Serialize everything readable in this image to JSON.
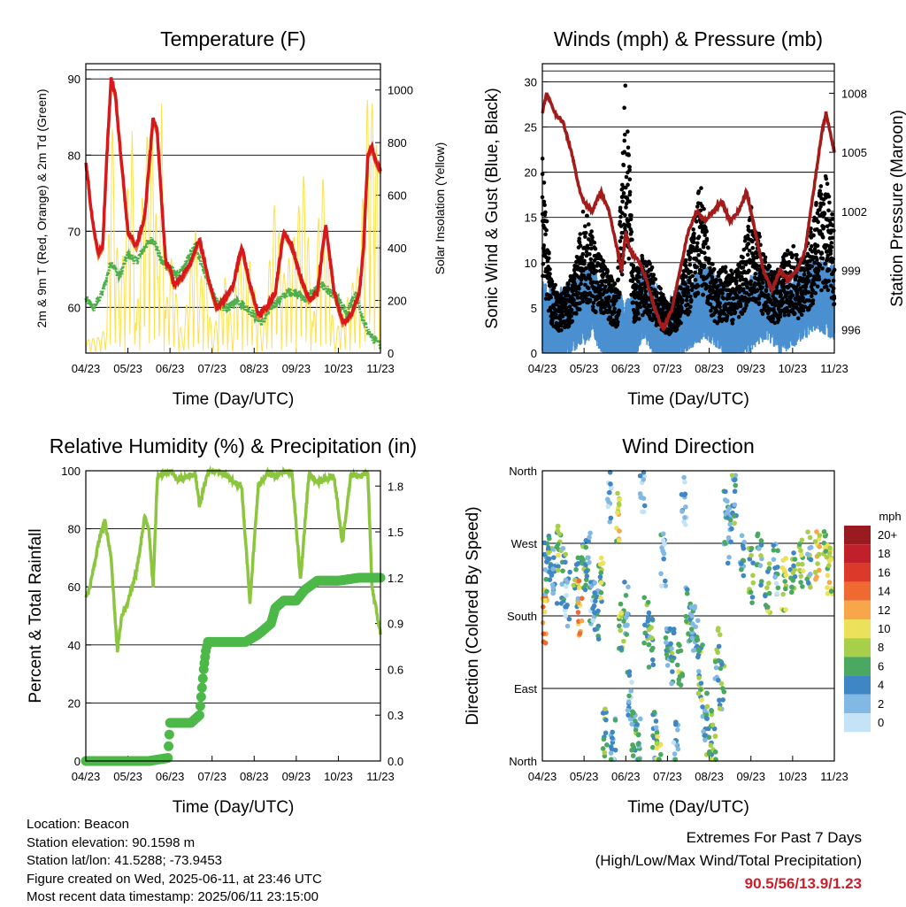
{
  "colors": {
    "temp_red": "#d7191c",
    "temp_orange": "#f07f2b",
    "dewpoint_green": "#4daf4a",
    "solar_yellow": "#ffe14d",
    "wind_blue": "#4a90d0",
    "gust_black": "#000000",
    "pressure_maroon": "#a31c1c",
    "rh_green": "#8cc63f",
    "rain_green": "#4cb848",
    "extremes_red": "#c8202c"
  },
  "x_ticks": [
    "04/23",
    "05/23",
    "06/23",
    "07/23",
    "08/23",
    "09/23",
    "10/23",
    "11/23"
  ],
  "panels": {
    "temperature": {
      "title": "Temperature (F)",
      "xlabel": "Time (Day/UTC)",
      "ylabel_left": "2m & 9m T (Red, Orange) & 2m Td (Green)",
      "ylabel_right": "Solar Insolation (Yellow)",
      "yticks_left": [
        "60",
        "70",
        "80",
        "90"
      ],
      "yticks_right": [
        "0",
        "200",
        "400",
        "600",
        "800",
        "1000"
      ]
    },
    "winds": {
      "title": "Winds (mph) & Pressure (mb)",
      "xlabel": "Time (Day/UTC)",
      "ylabel_left": "Sonic Wind & Gust (Blue, Black)",
      "ylabel_right": "Station Pressure (Maroon)",
      "yticks_left": [
        "0",
        "5",
        "10",
        "15",
        "20",
        "25",
        "30"
      ],
      "yticks_right": [
        "996",
        "999",
        "1002",
        "1005",
        "1008"
      ]
    },
    "humidity": {
      "title": "Relative Humidity (%) & Precipitation (in)",
      "xlabel": "Time (Day/UTC)",
      "ylabel_left": "Percent & Total Rainfall",
      "yticks_left": [
        "0",
        "20",
        "40",
        "60",
        "80",
        "100"
      ],
      "yticks_right": [
        "0.0",
        "0.3",
        "0.6",
        "0.9",
        "1.2",
        "1.5",
        "1.8"
      ]
    },
    "direction": {
      "title": "Wind Direction",
      "xlabel": "Time (Day/UTC)",
      "ylabel_left": "Direction (Colored By Speed)",
      "yticks_left": [
        "North",
        "East",
        "South",
        "West",
        "North"
      ],
      "legend_title": "mph",
      "legend_labels": [
        "20+",
        "18",
        "16",
        "14",
        "12",
        "10",
        "8",
        "6",
        "4",
        "2",
        "0"
      ],
      "legend_colors": [
        "#991a1f",
        "#c0202a",
        "#db3a2a",
        "#ef6a30",
        "#f7a64a",
        "#ece15a",
        "#a8cf4a",
        "#4aa860",
        "#3f86c4",
        "#82b9e4",
        "#c4e3f7"
      ]
    }
  },
  "info": {
    "location": "Location: Beacon",
    "elevation": "Station elevation: 90.1598 m",
    "latlon": "Station lat/lon: 41.5288; -73.9453",
    "created": "Figure created on Wed, 2025-06-11, at 23:46 UTC",
    "recent": "Most recent data timestamp: 2025/06/11 23:15:00"
  },
  "extremes": {
    "line1": "Extremes For Past 7 Days",
    "line2": "(High/Low/Max Wind/Total Precipitation)",
    "values": "90.5/56/13.9/1.23"
  },
  "chart_data": [
    {
      "type": "line",
      "title": "Temperature (F)",
      "xlabel": "Time (Day/UTC)",
      "ylabel": "2m & 9m T (Red, Orange) & 2m Td (Green)",
      "y2label": "Solar Insolation (Yellow)",
      "x_ticks": [
        "04/23",
        "05/23",
        "06/23",
        "07/23",
        "08/23",
        "09/23",
        "10/23",
        "11/23"
      ],
      "x_range": [
        0,
        7
      ],
      "ylim": [
        54,
        92
      ],
      "y2lim": [
        0,
        1100
      ],
      "series": [
        {
          "name": "2m & 9m T",
          "axis": "left",
          "color": "#d7191c",
          "x": [
            0,
            0.05,
            0.1,
            0.2,
            0.3,
            0.4,
            0.5,
            0.6,
            0.7,
            0.8,
            0.9,
            1.0,
            1.2,
            1.4,
            1.6,
            1.7,
            1.8,
            1.9,
            2.0,
            2.1,
            2.3,
            2.5,
            2.7,
            2.9,
            3.1,
            3.3,
            3.5,
            3.7,
            3.9,
            4.1,
            4.3,
            4.5,
            4.7,
            4.9,
            5.1,
            5.3,
            5.5,
            5.7,
            5.9,
            6.1,
            6.3,
            6.5,
            6.6,
            6.7,
            6.8,
            6.9,
            7.0
          ],
          "y": [
            79,
            77,
            74,
            70,
            67,
            68,
            80,
            90,
            88,
            82,
            76,
            70,
            68,
            72,
            85,
            83,
            74,
            66,
            65,
            63,
            64,
            66,
            69,
            64,
            60,
            61,
            63,
            68,
            63,
            59,
            60,
            62,
            70,
            68,
            64,
            61,
            62,
            71,
            62,
            58,
            59,
            62,
            68,
            80,
            81,
            79,
            78
          ]
        },
        {
          "name": "2m Td",
          "axis": "left",
          "color": "#4daf4a",
          "x": [
            0,
            0.2,
            0.4,
            0.6,
            0.8,
            1.0,
            1.2,
            1.4,
            1.6,
            1.8,
            2.0,
            2.2,
            2.4,
            2.6,
            2.8,
            3.0,
            3.2,
            3.4,
            3.6,
            3.8,
            4.0,
            4.2,
            4.4,
            4.6,
            4.8,
            5.0,
            5.2,
            5.4,
            5.6,
            5.8,
            6.0,
            6.2,
            6.4,
            6.6,
            6.8,
            7.0
          ],
          "y": [
            61,
            60,
            62,
            66,
            64,
            67,
            66,
            68,
            69,
            66,
            65,
            64,
            66,
            68,
            65,
            62,
            60,
            60,
            61,
            60,
            59,
            58,
            60,
            61,
            62,
            62,
            61,
            62,
            63,
            62,
            61,
            59,
            62,
            58,
            56,
            55
          ]
        },
        {
          "name": "Solar Insolation",
          "axis": "right",
          "color": "#ffe14d",
          "x": [
            0,
            0.3,
            0.5,
            0.55,
            0.6,
            0.8,
            1.0,
            1.1,
            1.2,
            1.4,
            1.6,
            1.62,
            1.7,
            1.8,
            1.9,
            2.0,
            2.3,
            2.6,
            2.7,
            2.8,
            3.0,
            3.3,
            3.5,
            3.6,
            3.9,
            4.2,
            4.5,
            4.7,
            4.9,
            5.2,
            5.4,
            5.6,
            5.9,
            6.2,
            6.5,
            6.7,
            6.9,
            7.0
          ],
          "y": [
            50,
            60,
            100,
            600,
            1000,
            200,
            650,
            850,
            100,
            800,
            900,
            1060,
            300,
            950,
            150,
            400,
            50,
            500,
            200,
            450,
            50,
            300,
            80,
            400,
            350,
            60,
            600,
            300,
            400,
            700,
            100,
            750,
            60,
            200,
            350,
            1000,
            900,
            50
          ]
        }
      ]
    },
    {
      "type": "line",
      "title": "Winds (mph) & Pressure (mb)",
      "xlabel": "Time (Day/UTC)",
      "ylabel": "Sonic Wind & Gust (Blue, Black)",
      "y2label": "Station Pressure (Maroon)",
      "x_ticks": [
        "04/23",
        "05/23",
        "06/23",
        "07/23",
        "08/23",
        "09/23",
        "10/23",
        "11/23"
      ],
      "x_range": [
        0,
        7
      ],
      "ylim": [
        0,
        32
      ],
      "y2lim": [
        994.8,
        1009.5
      ],
      "series": [
        {
          "name": "Sonic Wind",
          "axis": "left",
          "color": "#4a90d0",
          "x": [
            0,
            0.3,
            0.6,
            0.9,
            1.2,
            1.5,
            1.8,
            2.1,
            2.4,
            2.7,
            3.0,
            3.3,
            3.6,
            3.9,
            4.2,
            4.5,
            4.8,
            5.1,
            5.4,
            5.7,
            6.0,
            6.3,
            6.6,
            6.9,
            7.0
          ],
          "y": [
            4,
            3,
            4,
            5,
            6,
            4,
            3,
            2,
            6,
            4,
            2,
            4,
            5,
            6,
            5,
            3,
            4,
            5,
            6,
            4,
            5,
            6,
            7,
            6,
            6
          ]
        },
        {
          "name": "Gust",
          "axis": "left",
          "color": "#000000",
          "x": [
            0,
            0.2,
            0.4,
            0.6,
            0.8,
            1.0,
            1.2,
            1.4,
            1.6,
            1.8,
            2.0,
            2.2,
            2.4,
            2.6,
            2.8,
            3.0,
            3.2,
            3.4,
            3.6,
            3.8,
            4.0,
            4.2,
            4.4,
            4.6,
            4.8,
            5.0,
            5.2,
            5.4,
            5.6,
            5.8,
            6.0,
            6.2,
            6.4,
            6.6,
            6.8,
            7.0
          ],
          "y": [
            20,
            8,
            6,
            7,
            9,
            15,
            12,
            10,
            8,
            7,
            29,
            8,
            10,
            9,
            7,
            5,
            6,
            9,
            12,
            18,
            10,
            8,
            9,
            8,
            10,
            15,
            12,
            9,
            8,
            10,
            11,
            9,
            12,
            16,
            18,
            13
          ]
        },
        {
          "name": "Station Pressure",
          "axis": "right",
          "color": "#a31c1c",
          "x": [
            0,
            0.1,
            0.3,
            0.5,
            0.7,
            0.9,
            1.0,
            1.2,
            1.4,
            1.6,
            1.8,
            1.9,
            2.0,
            2.1,
            2.3,
            2.5,
            2.7,
            2.9,
            3.1,
            3.3,
            3.5,
            3.7,
            3.9,
            4.1,
            4.3,
            4.5,
            4.7,
            4.9,
            5.1,
            5.3,
            5.5,
            5.7,
            5.9,
            6.1,
            6.3,
            6.5,
            6.7,
            6.8,
            6.9,
            7.0
          ],
          "y": [
            1007,
            1008,
            1007,
            1006.5,
            1005,
            1003,
            1002.5,
            1002,
            1003,
            1002,
            1000,
            999,
            1001,
            1000,
            999.5,
            998.5,
            997,
            996,
            997,
            999,
            1001,
            1002,
            1001.5,
            1002,
            1002.5,
            1001.5,
            1002,
            1003,
            1001,
            999,
            998,
            999,
            998.5,
            999,
            1000,
            1003,
            1006,
            1007,
            1006,
            1005
          ]
        }
      ]
    },
    {
      "type": "line",
      "title": "Relative Humidity (%) & Precipitation (in)",
      "xlabel": "Time (Day/UTC)",
      "ylabel": "Percent & Total Rainfall",
      "x_ticks": [
        "04/23",
        "05/23",
        "06/23",
        "07/23",
        "08/23",
        "09/23",
        "10/23",
        "11/23"
      ],
      "x_range": [
        0,
        7
      ],
      "ylim": [
        0,
        100
      ],
      "y2lim": [
        0,
        1.9
      ],
      "series": [
        {
          "name": "Relative Humidity",
          "axis": "left",
          "color": "#8cc63f",
          "x": [
            0,
            0.1,
            0.3,
            0.45,
            0.6,
            0.75,
            0.85,
            1.0,
            1.2,
            1.4,
            1.5,
            1.6,
            1.7,
            1.8,
            2.0,
            2.2,
            2.4,
            2.6,
            2.7,
            2.9,
            3.1,
            3.3,
            3.5,
            3.7,
            3.9,
            4.1,
            4.3,
            4.5,
            4.7,
            4.9,
            5.1,
            5.3,
            5.5,
            5.7,
            5.9,
            6.1,
            6.3,
            6.5,
            6.7,
            6.8,
            7.0
          ],
          "y": [
            56,
            60,
            75,
            83,
            70,
            38,
            50,
            55,
            65,
            84,
            80,
            60,
            98,
            99,
            100,
            97,
            98,
            99,
            88,
            100,
            100,
            99,
            96,
            95,
            55,
            95,
            99,
            98,
            100,
            99,
            62,
            99,
            96,
            97,
            98,
            75,
            99,
            98,
            99,
            60,
            44
          ]
        },
        {
          "name": "Total Rainfall",
          "axis": "right",
          "color": "#4cb848",
          "x": [
            0,
            0.5,
            1.0,
            1.5,
            1.95,
            2.0,
            2.2,
            2.5,
            2.7,
            2.8,
            2.85,
            2.9,
            3.0,
            3.2,
            3.5,
            3.8,
            4.1,
            4.4,
            4.5,
            4.7,
            5.0,
            5.2,
            5.5,
            5.6,
            6.0,
            6.5,
            6.8,
            7.0
          ],
          "y": [
            0,
            0,
            0,
            0,
            0.02,
            0.25,
            0.25,
            0.25,
            0.3,
            0.6,
            0.72,
            0.78,
            0.78,
            0.78,
            0.78,
            0.78,
            0.83,
            0.9,
            1.0,
            1.05,
            1.05,
            1.12,
            1.18,
            1.18,
            1.18,
            1.2,
            1.2,
            1.2
          ]
        }
      ]
    },
    {
      "type": "scatter",
      "title": "Wind Direction",
      "xlabel": "Time (Day/UTC)",
      "ylabel": "Direction (Colored By Speed)",
      "x_ticks": [
        "04/23",
        "05/23",
        "06/23",
        "07/23",
        "08/23",
        "09/23",
        "10/23",
        "11/23"
      ],
      "y_ticks": [
        "North",
        "East",
        "South",
        "West",
        "North"
      ],
      "x_range": [
        0,
        7
      ],
      "ylim": [
        0,
        360
      ],
      "legend_title": "mph",
      "legend": "right",
      "series": [
        {
          "name": "Wind Direction",
          "x": [
            0.05,
            0.1,
            0.2,
            0.3,
            0.4,
            0.5,
            0.6,
            0.8,
            0.9,
            1.0,
            1.1,
            1.2,
            1.3,
            1.4,
            1.5,
            1.6,
            1.7,
            1.8,
            1.9,
            2.0,
            2.1,
            2.2,
            2.3,
            2.4,
            2.5,
            2.6,
            2.7,
            2.8,
            2.9,
            3.0,
            3.1,
            3.2,
            3.3,
            3.4,
            3.5,
            3.6,
            3.7,
            3.8,
            3.9,
            4.0,
            4.1,
            4.2,
            4.3,
            4.4,
            4.5,
            4.6,
            4.8,
            5.0,
            5.2,
            5.4,
            5.6,
            5.8,
            6.0,
            6.2,
            6.4,
            6.6,
            6.8,
            6.9
          ],
          "y": [
            180,
            240,
            250,
            230,
            260,
            230,
            200,
            220,
            190,
            240,
            250,
            200,
            180,
            230,
            40,
            330,
            20,
            300,
            160,
            190,
            80,
            40,
            20,
            340,
            170,
            150,
            30,
            10,
            250,
            140,
            130,
            20,
            110,
            320,
            180,
            160,
            140,
            110,
            60,
            40,
            10,
            130,
            90,
            300,
            280,
            320,
            260,
            230,
            250,
            210,
            240,
            220,
            230,
            240,
            250,
            260,
            250,
            240
          ],
          "speed": [
            12,
            4,
            6,
            3,
            7,
            5,
            2,
            6,
            12,
            5,
            4,
            3,
            5,
            7,
            6,
            3,
            4,
            10,
            8,
            4,
            3,
            5,
            4,
            2,
            6,
            5,
            4,
            9,
            3,
            4,
            5,
            3,
            8,
            2,
            5,
            3,
            4,
            7,
            4,
            6,
            8,
            5,
            6,
            4,
            3,
            5,
            4,
            6,
            5,
            7,
            4,
            8,
            6,
            7,
            5,
            10,
            8,
            9
          ]
        }
      ]
    }
  ]
}
